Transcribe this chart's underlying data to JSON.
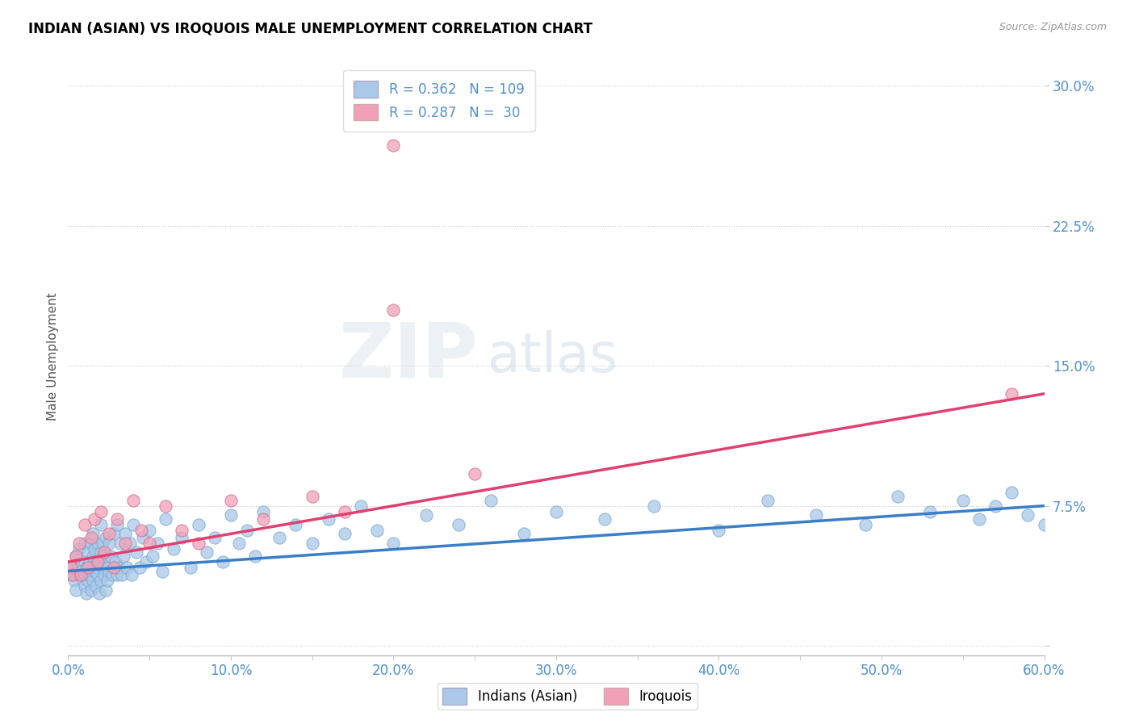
{
  "title": "INDIAN (ASIAN) VS IROQUOIS MALE UNEMPLOYMENT CORRELATION CHART",
  "source_text": "Source: ZipAtlas.com",
  "ylabel": "Male Unemployment",
  "xlim": [
    0.0,
    0.6
  ],
  "ylim": [
    -0.005,
    0.315
  ],
  "yticks": [
    0.0,
    0.075,
    0.15,
    0.225,
    0.3
  ],
  "ytick_labels": [
    "",
    "7.5%",
    "15.0%",
    "22.5%",
    "30.0%"
  ],
  "xtick_labels": [
    "0.0%",
    "",
    "10.0%",
    "",
    "20.0%",
    "",
    "30.0%",
    "",
    "40.0%",
    "",
    "50.0%",
    "",
    "60.0%"
  ],
  "xticks": [
    0.0,
    0.05,
    0.1,
    0.15,
    0.2,
    0.25,
    0.3,
    0.35,
    0.4,
    0.45,
    0.5,
    0.55,
    0.6
  ],
  "blue_color": "#aac8e8",
  "pink_color": "#f2a0b8",
  "blue_line_color": "#3a7ec8",
  "pink_line_color": "#e04070",
  "tick_color": "#5090d0",
  "blue_R": 0.362,
  "blue_N": 109,
  "pink_R": 0.287,
  "pink_N": 30,
  "watermark_zip": "ZIP",
  "watermark_atlas": "atlas",
  "legend_label_blue": "Indians (Asian)",
  "legend_label_pink": "Iroquois",
  "blue_line_x0": 0.0,
  "blue_line_y0": 0.04,
  "blue_line_x1": 0.6,
  "blue_line_y1": 0.075,
  "pink_line_x0": 0.0,
  "pink_line_y0": 0.045,
  "pink_line_x1": 0.6,
  "pink_line_y1": 0.135,
  "blue_x": [
    0.002,
    0.003,
    0.004,
    0.005,
    0.005,
    0.006,
    0.007,
    0.007,
    0.008,
    0.009,
    0.01,
    0.01,
    0.01,
    0.01,
    0.011,
    0.011,
    0.012,
    0.012,
    0.013,
    0.013,
    0.014,
    0.014,
    0.015,
    0.015,
    0.015,
    0.016,
    0.016,
    0.017,
    0.017,
    0.018,
    0.018,
    0.019,
    0.019,
    0.02,
    0.02,
    0.02,
    0.021,
    0.021,
    0.022,
    0.022,
    0.023,
    0.023,
    0.024,
    0.024,
    0.025,
    0.025,
    0.026,
    0.027,
    0.028,
    0.029,
    0.03,
    0.03,
    0.031,
    0.032,
    0.033,
    0.034,
    0.035,
    0.036,
    0.038,
    0.039,
    0.04,
    0.042,
    0.044,
    0.046,
    0.048,
    0.05,
    0.052,
    0.055,
    0.058,
    0.06,
    0.065,
    0.07,
    0.075,
    0.08,
    0.085,
    0.09,
    0.095,
    0.1,
    0.105,
    0.11,
    0.115,
    0.12,
    0.13,
    0.14,
    0.15,
    0.16,
    0.17,
    0.18,
    0.19,
    0.2,
    0.22,
    0.24,
    0.26,
    0.28,
    0.3,
    0.33,
    0.36,
    0.4,
    0.43,
    0.46,
    0.49,
    0.51,
    0.53,
    0.55,
    0.56,
    0.57,
    0.58,
    0.59,
    0.6
  ],
  "blue_y": [
    0.038,
    0.042,
    0.035,
    0.048,
    0.03,
    0.044,
    0.038,
    0.052,
    0.04,
    0.036,
    0.045,
    0.032,
    0.055,
    0.038,
    0.042,
    0.028,
    0.05,
    0.035,
    0.045,
    0.038,
    0.055,
    0.03,
    0.048,
    0.035,
    0.06,
    0.04,
    0.052,
    0.042,
    0.032,
    0.055,
    0.038,
    0.045,
    0.028,
    0.05,
    0.035,
    0.065,
    0.042,
    0.055,
    0.038,
    0.048,
    0.03,
    0.058,
    0.042,
    0.035,
    0.055,
    0.04,
    0.048,
    0.038,
    0.06,
    0.045,
    0.038,
    0.065,
    0.042,
    0.055,
    0.038,
    0.048,
    0.06,
    0.042,
    0.055,
    0.038,
    0.065,
    0.05,
    0.042,
    0.058,
    0.045,
    0.062,
    0.048,
    0.055,
    0.04,
    0.068,
    0.052,
    0.058,
    0.042,
    0.065,
    0.05,
    0.058,
    0.045,
    0.07,
    0.055,
    0.062,
    0.048,
    0.072,
    0.058,
    0.065,
    0.055,
    0.068,
    0.06,
    0.075,
    0.062,
    0.055,
    0.07,
    0.065,
    0.078,
    0.06,
    0.072,
    0.068,
    0.075,
    0.062,
    0.078,
    0.07,
    0.065,
    0.08,
    0.072,
    0.078,
    0.068,
    0.075,
    0.082,
    0.07,
    0.065
  ],
  "pink_x": [
    0.002,
    0.003,
    0.005,
    0.007,
    0.008,
    0.01,
    0.012,
    0.014,
    0.016,
    0.018,
    0.02,
    0.022,
    0.025,
    0.028,
    0.03,
    0.035,
    0.04,
    0.045,
    0.05,
    0.06,
    0.07,
    0.08,
    0.1,
    0.12,
    0.15,
    0.17,
    0.2,
    0.2,
    0.25,
    0.58
  ],
  "pink_y": [
    0.042,
    0.038,
    0.048,
    0.055,
    0.038,
    0.065,
    0.042,
    0.058,
    0.068,
    0.045,
    0.072,
    0.05,
    0.06,
    0.042,
    0.068,
    0.055,
    0.078,
    0.062,
    0.055,
    0.075,
    0.062,
    0.055,
    0.078,
    0.068,
    0.08,
    0.072,
    0.18,
    0.268,
    0.092,
    0.135
  ]
}
